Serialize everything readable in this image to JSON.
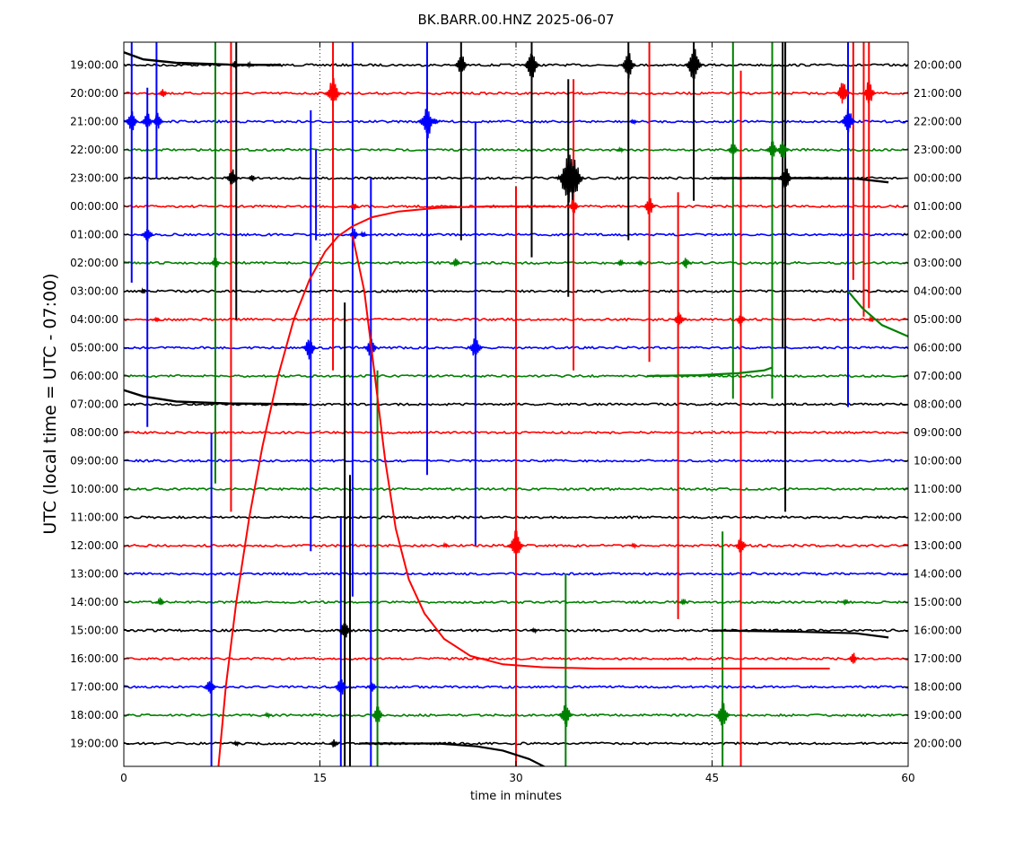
{
  "chart_data": {
    "type": "line",
    "title": "BK.BARR.00.HNZ 2025-06-07",
    "xlabel": "time in minutes",
    "ylabel": "UTC (local time = UTC - 07:00)",
    "xlim": [
      0,
      60
    ],
    "x_ticks": [
      0,
      15,
      30,
      45,
      60
    ],
    "x_grid_dotted_at": [
      15,
      30,
      45
    ],
    "colors_cycle": [
      "#000000",
      "#ff0000",
      "#0000ff",
      "#008000"
    ],
    "rows_left": [
      "19:00:00",
      "20:00:00",
      "21:00:00",
      "22:00:00",
      "23:00:00",
      "00:00:00",
      "01:00:00",
      "02:00:00",
      "03:00:00",
      "04:00:00",
      "05:00:00",
      "06:00:00",
      "07:00:00",
      "08:00:00",
      "09:00:00",
      "10:00:00",
      "11:00:00",
      "12:00:00",
      "13:00:00",
      "14:00:00",
      "15:00:00",
      "16:00:00",
      "17:00:00",
      "18:00:00",
      "19:00:00"
    ],
    "rows_right": [
      "20:00:00",
      "21:00:00",
      "22:00:00",
      "23:00:00",
      "00:00:00",
      "01:00:00",
      "02:00:00",
      "03:00:00",
      "04:00:00",
      "05:00:00",
      "06:00:00",
      "07:00:00",
      "08:00:00",
      "09:00:00",
      "10:00:00",
      "11:00:00",
      "12:00:00",
      "13:00:00",
      "14:00:00",
      "15:00:00",
      "16:00:00",
      "17:00:00",
      "18:00:00",
      "19:00:00",
      "20:00:00"
    ],
    "events": [
      {
        "row": 0,
        "t": 8.5,
        "amp": 0.5
      },
      {
        "row": 0,
        "t": 9.6,
        "amp": 0.3
      },
      {
        "row": 0,
        "t": 25.8,
        "amp": 1.5
      },
      {
        "row": 0,
        "t": 31.2,
        "amp": 2.0
      },
      {
        "row": 0,
        "t": 38.6,
        "amp": 1.8
      },
      {
        "row": 0,
        "t": 43.6,
        "amp": 2.3
      },
      {
        "row": 1,
        "t": 3.0,
        "amp": 0.6
      },
      {
        "row": 1,
        "t": 16.0,
        "amp": 2.0
      },
      {
        "row": 1,
        "t": 55.0,
        "amp": 1.6
      },
      {
        "row": 1,
        "t": 57.0,
        "amp": 1.6
      },
      {
        "row": 2,
        "t": 0.6,
        "amp": 1.4
      },
      {
        "row": 2,
        "t": 1.8,
        "amp": 1.2
      },
      {
        "row": 2,
        "t": 2.6,
        "amp": 1.1
      },
      {
        "row": 2,
        "t": 23.2,
        "amp": 2.2
      },
      {
        "row": 2,
        "t": 23.8,
        "amp": 0.5
      },
      {
        "row": 2,
        "t": 39.0,
        "amp": 0.4
      },
      {
        "row": 2,
        "t": 55.4,
        "amp": 1.8
      },
      {
        "row": 3,
        "t": 38.0,
        "amp": 0.3
      },
      {
        "row": 3,
        "t": 46.6,
        "amp": 1.0
      },
      {
        "row": 3,
        "t": 49.6,
        "amp": 1.3
      },
      {
        "row": 3,
        "t": 50.4,
        "amp": 1.3
      },
      {
        "row": 4,
        "t": 8.3,
        "amp": 1.4
      },
      {
        "row": 4,
        "t": 9.8,
        "amp": 0.5
      },
      {
        "row": 4,
        "t": 34.0,
        "amp": 3.5
      },
      {
        "row": 4,
        "t": 34.4,
        "amp": 3.0
      },
      {
        "row": 4,
        "t": 50.6,
        "amp": 1.6
      },
      {
        "row": 5,
        "t": 17.6,
        "amp": 0.5
      },
      {
        "row": 5,
        "t": 34.4,
        "amp": 1.0
      },
      {
        "row": 5,
        "t": 40.2,
        "amp": 1.2
      },
      {
        "row": 6,
        "t": 1.8,
        "amp": 1.2
      },
      {
        "row": 6,
        "t": 17.6,
        "amp": 0.8
      },
      {
        "row": 6,
        "t": 18.3,
        "amp": 0.4
      },
      {
        "row": 7,
        "t": 7.0,
        "amp": 0.8
      },
      {
        "row": 7,
        "t": 25.4,
        "amp": 0.6
      },
      {
        "row": 7,
        "t": 38.0,
        "amp": 0.4
      },
      {
        "row": 7,
        "t": 39.5,
        "amp": 0.3
      },
      {
        "row": 7,
        "t": 43.0,
        "amp": 0.7
      },
      {
        "row": 8,
        "t": 1.5,
        "amp": 0.3
      },
      {
        "row": 9,
        "t": 2.5,
        "amp": 0.3
      },
      {
        "row": 9,
        "t": 42.5,
        "amp": 1.2
      },
      {
        "row": 9,
        "t": 47.2,
        "amp": 0.9
      },
      {
        "row": 9,
        "t": 57.2,
        "amp": 0.4
      },
      {
        "row": 10,
        "t": 14.2,
        "amp": 1.5
      },
      {
        "row": 10,
        "t": 18.9,
        "amp": 1.4
      },
      {
        "row": 10,
        "t": 26.9,
        "amp": 1.6
      },
      {
        "row": 17,
        "t": 24.6,
        "amp": 0.3
      },
      {
        "row": 17,
        "t": 30.0,
        "amp": 2.0
      },
      {
        "row": 17,
        "t": 39.0,
        "amp": 0.3
      },
      {
        "row": 17,
        "t": 47.2,
        "amp": 1.2
      },
      {
        "row": 19,
        "t": 2.8,
        "amp": 0.6
      },
      {
        "row": 19,
        "t": 42.8,
        "amp": 0.4
      },
      {
        "row": 19,
        "t": 55.2,
        "amp": 0.4
      },
      {
        "row": 20,
        "t": 16.9,
        "amp": 1.4
      },
      {
        "row": 20,
        "t": 31.4,
        "amp": 0.3
      },
      {
        "row": 21,
        "t": 55.8,
        "amp": 0.8
      },
      {
        "row": 22,
        "t": 6.6,
        "amp": 1.3
      },
      {
        "row": 22,
        "t": 16.6,
        "amp": 1.3
      },
      {
        "row": 22,
        "t": 19.0,
        "amp": 0.7
      },
      {
        "row": 23,
        "t": 11.0,
        "amp": 0.3
      },
      {
        "row": 23,
        "t": 19.4,
        "amp": 1.3
      },
      {
        "row": 23,
        "t": 33.8,
        "amp": 1.6
      },
      {
        "row": 23,
        "t": 45.8,
        "amp": 1.8
      },
      {
        "row": 24,
        "t": 8.6,
        "amp": 0.3
      },
      {
        "row": 24,
        "t": 16.1,
        "amp": 0.6
      }
    ],
    "spikes": [
      {
        "t": 0.6,
        "from": -1.5,
        "to": 7.7,
        "color": "#0000ff"
      },
      {
        "t": 1.8,
        "from": 0.8,
        "to": 12.8,
        "color": "#0000ff"
      },
      {
        "t": 2.5,
        "from": -1.5,
        "to": 4.0,
        "color": "#0000ff"
      },
      {
        "t": 7.0,
        "from": -1.5,
        "to": 14.8,
        "color": "#008000"
      },
      {
        "t": 8.2,
        "from": -1.5,
        "to": 15.8,
        "color": "#ff0000"
      },
      {
        "t": 8.6,
        "from": -1.5,
        "to": 9.0,
        "color": "#000000"
      },
      {
        "t": 6.7,
        "from": 13.0,
        "to": 24.8,
        "color": "#0000ff"
      },
      {
        "t": 16.0,
        "from": -1.5,
        "to": 10.8,
        "color": "#ff0000"
      },
      {
        "t": 14.3,
        "from": 1.6,
        "to": 17.2,
        "color": "#0000ff"
      },
      {
        "t": 14.7,
        "from": 3.0,
        "to": 6.2,
        "color": "#0000ff"
      },
      {
        "t": 16.6,
        "from": 16.0,
        "to": 24.8,
        "color": "#0000ff"
      },
      {
        "t": 16.9,
        "from": 8.4,
        "to": 24.8,
        "color": "#000000"
      },
      {
        "t": 17.3,
        "from": 14.5,
        "to": 24.8,
        "color": "#000000"
      },
      {
        "t": 17.5,
        "from": -1.5,
        "to": 18.8,
        "color": "#0000ff"
      },
      {
        "t": 18.9,
        "from": 4.0,
        "to": 24.8,
        "color": "#0000ff"
      },
      {
        "t": 19.4,
        "from": 10.8,
        "to": 24.8,
        "color": "#008000"
      },
      {
        "t": 23.2,
        "from": -1.5,
        "to": 14.5,
        "color": "#0000ff"
      },
      {
        "t": 25.8,
        "from": -1.5,
        "to": 6.2,
        "color": "#000000"
      },
      {
        "t": 26.9,
        "from": 2.0,
        "to": 17.0,
        "color": "#0000ff"
      },
      {
        "t": 30.0,
        "from": 4.3,
        "to": 24.8,
        "color": "#ff0000"
      },
      {
        "t": 31.2,
        "from": -1.5,
        "to": 6.8,
        "color": "#000000"
      },
      {
        "t": 33.8,
        "from": 18.0,
        "to": 24.8,
        "color": "#008000"
      },
      {
        "t": 34.0,
        "from": 0.5,
        "to": 8.2,
        "color": "#000000"
      },
      {
        "t": 34.4,
        "from": 0.5,
        "to": 10.8,
        "color": "#ff0000"
      },
      {
        "t": 38.6,
        "from": -1.5,
        "to": 6.2,
        "color": "#000000"
      },
      {
        "t": 40.2,
        "from": -1.5,
        "to": 10.5,
        "color": "#ff0000"
      },
      {
        "t": 42.4,
        "from": 4.5,
        "to": 19.6,
        "color": "#ff0000"
      },
      {
        "t": 43.6,
        "from": -1.5,
        "to": 4.8,
        "color": "#000000"
      },
      {
        "t": 45.8,
        "from": 16.5,
        "to": 24.8,
        "color": "#008000"
      },
      {
        "t": 46.6,
        "from": -1.5,
        "to": 11.8,
        "color": "#008000"
      },
      {
        "t": 47.2,
        "from": 0.2,
        "to": 24.8,
        "color": "#ff0000"
      },
      {
        "t": 49.6,
        "from": -1.5,
        "to": 11.8,
        "color": "#008000"
      },
      {
        "t": 50.4,
        "from": -1.5,
        "to": 10.0,
        "color": "#000000"
      },
      {
        "t": 50.6,
        "from": -1.5,
        "to": 15.8,
        "color": "#000000"
      },
      {
        "t": 55.4,
        "from": -1.5,
        "to": 12.1,
        "color": "#0000ff"
      },
      {
        "t": 55.8,
        "from": -1.5,
        "to": 7.6,
        "color": "#ff0000"
      },
      {
        "t": 56.6,
        "from": -1.5,
        "to": 8.9,
        "color": "#ff0000"
      },
      {
        "t": 57.0,
        "from": -1.5,
        "to": 8.6,
        "color": "#ff0000"
      }
    ]
  }
}
